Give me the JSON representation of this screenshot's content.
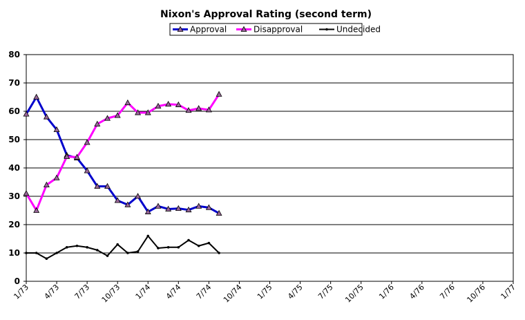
{
  "chart_data": {
    "type": "line",
    "title": "Nixon's Approval Rating (second term)",
    "xlabel": "",
    "ylabel": "",
    "ylim": [
      0,
      80
    ],
    "yticks": [
      "0",
      "10",
      "20",
      "30",
      "40",
      "50",
      "60",
      "70",
      "80"
    ],
    "xlim": [
      0,
      48
    ],
    "xticks": [
      "1/73",
      "4/73",
      "7/73",
      "10/73",
      "1/74",
      "4/74",
      "7/74",
      "10/74",
      "1/75",
      "4/75",
      "7/75",
      "10/75",
      "1/76",
      "4/76",
      "7/76",
      "10/76",
      "1/77"
    ],
    "grid": "horizontal",
    "legend": "top-center",
    "series": [
      {
        "name": "Approval",
        "color": "#0000cc",
        "marker": "triangle",
        "x": [
          0,
          1,
          2,
          3,
          4,
          5,
          6,
          7,
          8,
          9,
          10,
          11,
          12,
          13,
          14,
          15,
          16,
          17,
          18,
          19
        ],
        "values": [
          59,
          65,
          58,
          53.5,
          44.5,
          43.5,
          39,
          33.5,
          33.5,
          28.5,
          27,
          30,
          24.5,
          26.5,
          25.5,
          25.7,
          25.2,
          26.5,
          26,
          24
        ]
      },
      {
        "name": "Disapproval",
        "color": "#ff00ff",
        "marker": "triangle",
        "x": [
          0,
          1,
          2,
          3,
          4,
          5,
          6,
          7,
          8,
          9,
          10,
          11,
          12,
          13,
          14,
          15,
          16,
          17,
          18,
          19
        ],
        "values": [
          31,
          25,
          34,
          36.5,
          44,
          43.8,
          49,
          55.5,
          57.5,
          58.5,
          63,
          59.5,
          59.5,
          61.8,
          62.5,
          62.3,
          60.3,
          61,
          60.5,
          66
        ]
      },
      {
        "name": "Undecided",
        "color": "#000000",
        "marker": "dot",
        "x": [
          0,
          1,
          2,
          3,
          4,
          5,
          6,
          7,
          8,
          9,
          10,
          11,
          12,
          13,
          14,
          15,
          16,
          17,
          18,
          19
        ],
        "values": [
          10,
          10,
          8,
          10,
          12,
          12.5,
          12,
          11,
          9,
          13,
          10,
          10.5,
          16,
          11.7,
          12,
          12,
          14.5,
          12.5,
          13.5,
          10
        ]
      }
    ]
  }
}
